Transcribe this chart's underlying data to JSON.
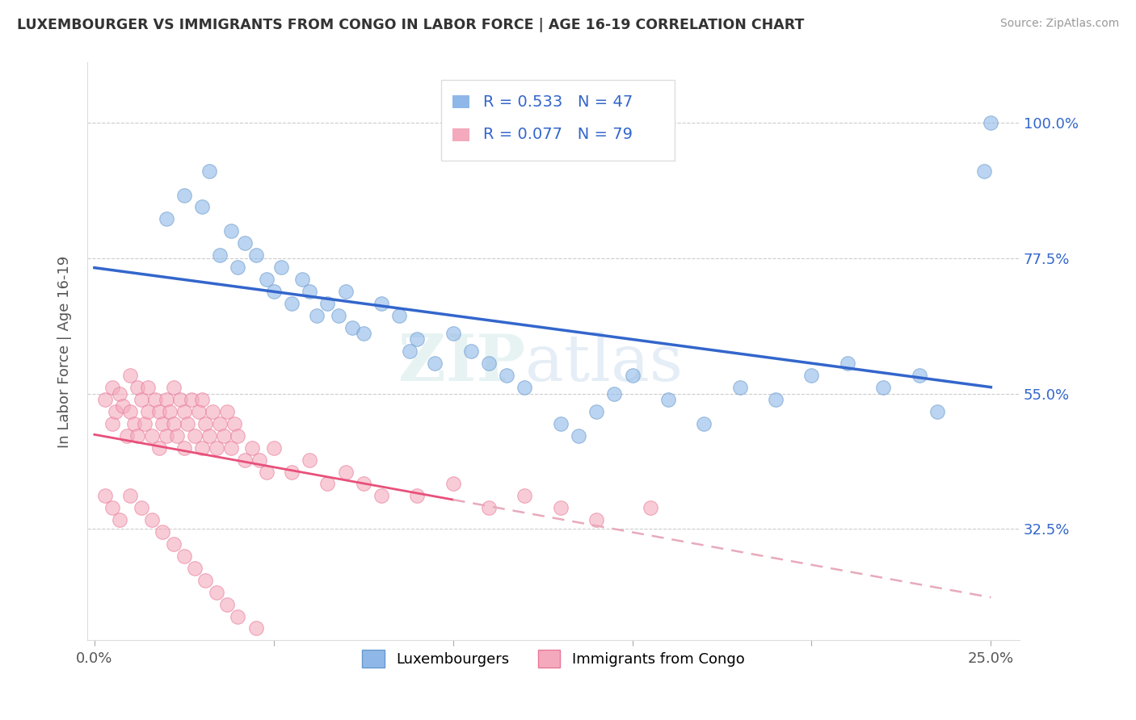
{
  "title": "LUXEMBOURGER VS IMMIGRANTS FROM CONGO IN LABOR FORCE | AGE 16-19 CORRELATION CHART",
  "source": "Source: ZipAtlas.com",
  "ylabel": "In Labor Force | Age 16-19",
  "xlim": [
    -0.002,
    0.258
  ],
  "ylim": [
    0.14,
    1.1
  ],
  "xtick_pos": [
    0.0,
    0.05,
    0.1,
    0.15,
    0.2,
    0.25
  ],
  "xtick_labels": [
    "0.0%",
    "",
    "",
    "",
    "",
    "25.0%"
  ],
  "ytick_positions": [
    0.325,
    0.55,
    0.775,
    1.0
  ],
  "ytick_labels": [
    "32.5%",
    "55.0%",
    "77.5%",
    "100.0%"
  ],
  "blue_color": "#8FB8E8",
  "blue_edge_color": "#6699CC",
  "pink_color": "#F4AABC",
  "pink_edge_color": "#E87799",
  "blue_line_color": "#3366CC",
  "pink_line_color": "#E8507A",
  "pink_dash_color": "#E8AABB",
  "watermark": "ZIPatlas",
  "legend_R_blue": "R = 0.533",
  "legend_N_blue": "N = 47",
  "legend_R_pink": "R = 0.077",
  "legend_N_pink": "N = 79",
  "legend_label_blue": "Luxembourgers",
  "legend_label_pink": "Immigrants from Congo",
  "blue_scatter_x": [
    0.02,
    0.025,
    0.03,
    0.032,
    0.035,
    0.038,
    0.04,
    0.042,
    0.045,
    0.048,
    0.05,
    0.052,
    0.055,
    0.058,
    0.06,
    0.062,
    0.065,
    0.068,
    0.07,
    0.072,
    0.075,
    0.08,
    0.085,
    0.088,
    0.09,
    0.095,
    0.1,
    0.105,
    0.11,
    0.115,
    0.12,
    0.13,
    0.135,
    0.14,
    0.145,
    0.15,
    0.16,
    0.17,
    0.18,
    0.19,
    0.2,
    0.21,
    0.22,
    0.23,
    0.235,
    0.248,
    0.25
  ],
  "blue_scatter_y": [
    0.84,
    0.88,
    0.86,
    0.92,
    0.78,
    0.82,
    0.76,
    0.8,
    0.78,
    0.74,
    0.72,
    0.76,
    0.7,
    0.74,
    0.72,
    0.68,
    0.7,
    0.68,
    0.72,
    0.66,
    0.65,
    0.7,
    0.68,
    0.62,
    0.64,
    0.6,
    0.65,
    0.62,
    0.6,
    0.58,
    0.56,
    0.5,
    0.48,
    0.52,
    0.55,
    0.58,
    0.54,
    0.5,
    0.56,
    0.54,
    0.58,
    0.6,
    0.56,
    0.58,
    0.52,
    0.92,
    1.0
  ],
  "pink_scatter_x": [
    0.003,
    0.005,
    0.005,
    0.006,
    0.007,
    0.008,
    0.009,
    0.01,
    0.01,
    0.011,
    0.012,
    0.012,
    0.013,
    0.014,
    0.015,
    0.015,
    0.016,
    0.017,
    0.018,
    0.018,
    0.019,
    0.02,
    0.02,
    0.021,
    0.022,
    0.022,
    0.023,
    0.024,
    0.025,
    0.025,
    0.026,
    0.027,
    0.028,
    0.029,
    0.03,
    0.03,
    0.031,
    0.032,
    0.033,
    0.034,
    0.035,
    0.036,
    0.037,
    0.038,
    0.039,
    0.04,
    0.042,
    0.044,
    0.046,
    0.048,
    0.05,
    0.055,
    0.06,
    0.065,
    0.07,
    0.075,
    0.08,
    0.09,
    0.1,
    0.11,
    0.12,
    0.13,
    0.14,
    0.155,
    0.003,
    0.005,
    0.007,
    0.01,
    0.013,
    0.016,
    0.019,
    0.022,
    0.025,
    0.028,
    0.031,
    0.034,
    0.037,
    0.04,
    0.045
  ],
  "pink_scatter_y": [
    0.54,
    0.56,
    0.5,
    0.52,
    0.55,
    0.53,
    0.48,
    0.58,
    0.52,
    0.5,
    0.56,
    0.48,
    0.54,
    0.5,
    0.56,
    0.52,
    0.48,
    0.54,
    0.52,
    0.46,
    0.5,
    0.54,
    0.48,
    0.52,
    0.56,
    0.5,
    0.48,
    0.54,
    0.52,
    0.46,
    0.5,
    0.54,
    0.48,
    0.52,
    0.54,
    0.46,
    0.5,
    0.48,
    0.52,
    0.46,
    0.5,
    0.48,
    0.52,
    0.46,
    0.5,
    0.48,
    0.44,
    0.46,
    0.44,
    0.42,
    0.46,
    0.42,
    0.44,
    0.4,
    0.42,
    0.4,
    0.38,
    0.38,
    0.4,
    0.36,
    0.38,
    0.36,
    0.34,
    0.36,
    0.38,
    0.36,
    0.34,
    0.38,
    0.36,
    0.34,
    0.32,
    0.3,
    0.28,
    0.26,
    0.24,
    0.22,
    0.2,
    0.18,
    0.16
  ]
}
